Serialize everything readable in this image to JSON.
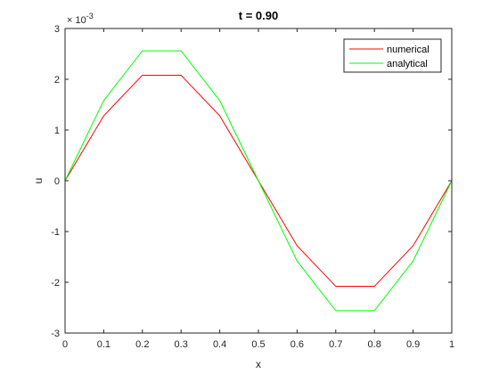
{
  "chart_data": {
    "type": "line",
    "title": "t = 0.90",
    "xlabel": "x",
    "ylabel": "u",
    "y_exponent_label": "× 10",
    "y_exponent_power": "-3",
    "xlim": [
      0,
      1
    ],
    "ylim": [
      -3,
      3
    ],
    "y_scale_factor": 0.001,
    "x_ticks": [
      0,
      0.1,
      0.2,
      0.3,
      0.4,
      0.5,
      0.6,
      0.7,
      0.8,
      0.9,
      1
    ],
    "x_tick_labels": [
      "0",
      "0.1",
      "0.2",
      "0.3",
      "0.4",
      "0.5",
      "0.6",
      "0.7",
      "0.8",
      "0.9",
      "1"
    ],
    "y_ticks": [
      -3,
      -2,
      -1,
      0,
      1,
      2,
      3
    ],
    "y_tick_labels": [
      "-3",
      "-2",
      "-1",
      "0",
      "1",
      "2",
      "3"
    ],
    "legend_position": "top-right",
    "grid": false,
    "x": [
      0,
      0.1,
      0.2,
      0.3,
      0.4,
      0.5,
      0.6,
      0.7,
      0.8,
      0.9,
      1
    ],
    "series": [
      {
        "name": "numerical",
        "color": "#ff0000",
        "values": [
          0,
          1.28,
          2.08,
          2.08,
          1.28,
          0,
          -1.28,
          -2.08,
          -2.08,
          -1.28,
          0
        ]
      },
      {
        "name": "analytical",
        "color": "#00ff00",
        "values": [
          0,
          1.58,
          2.56,
          2.56,
          1.58,
          0,
          -1.58,
          -2.56,
          -2.56,
          -1.58,
          0
        ]
      }
    ]
  }
}
